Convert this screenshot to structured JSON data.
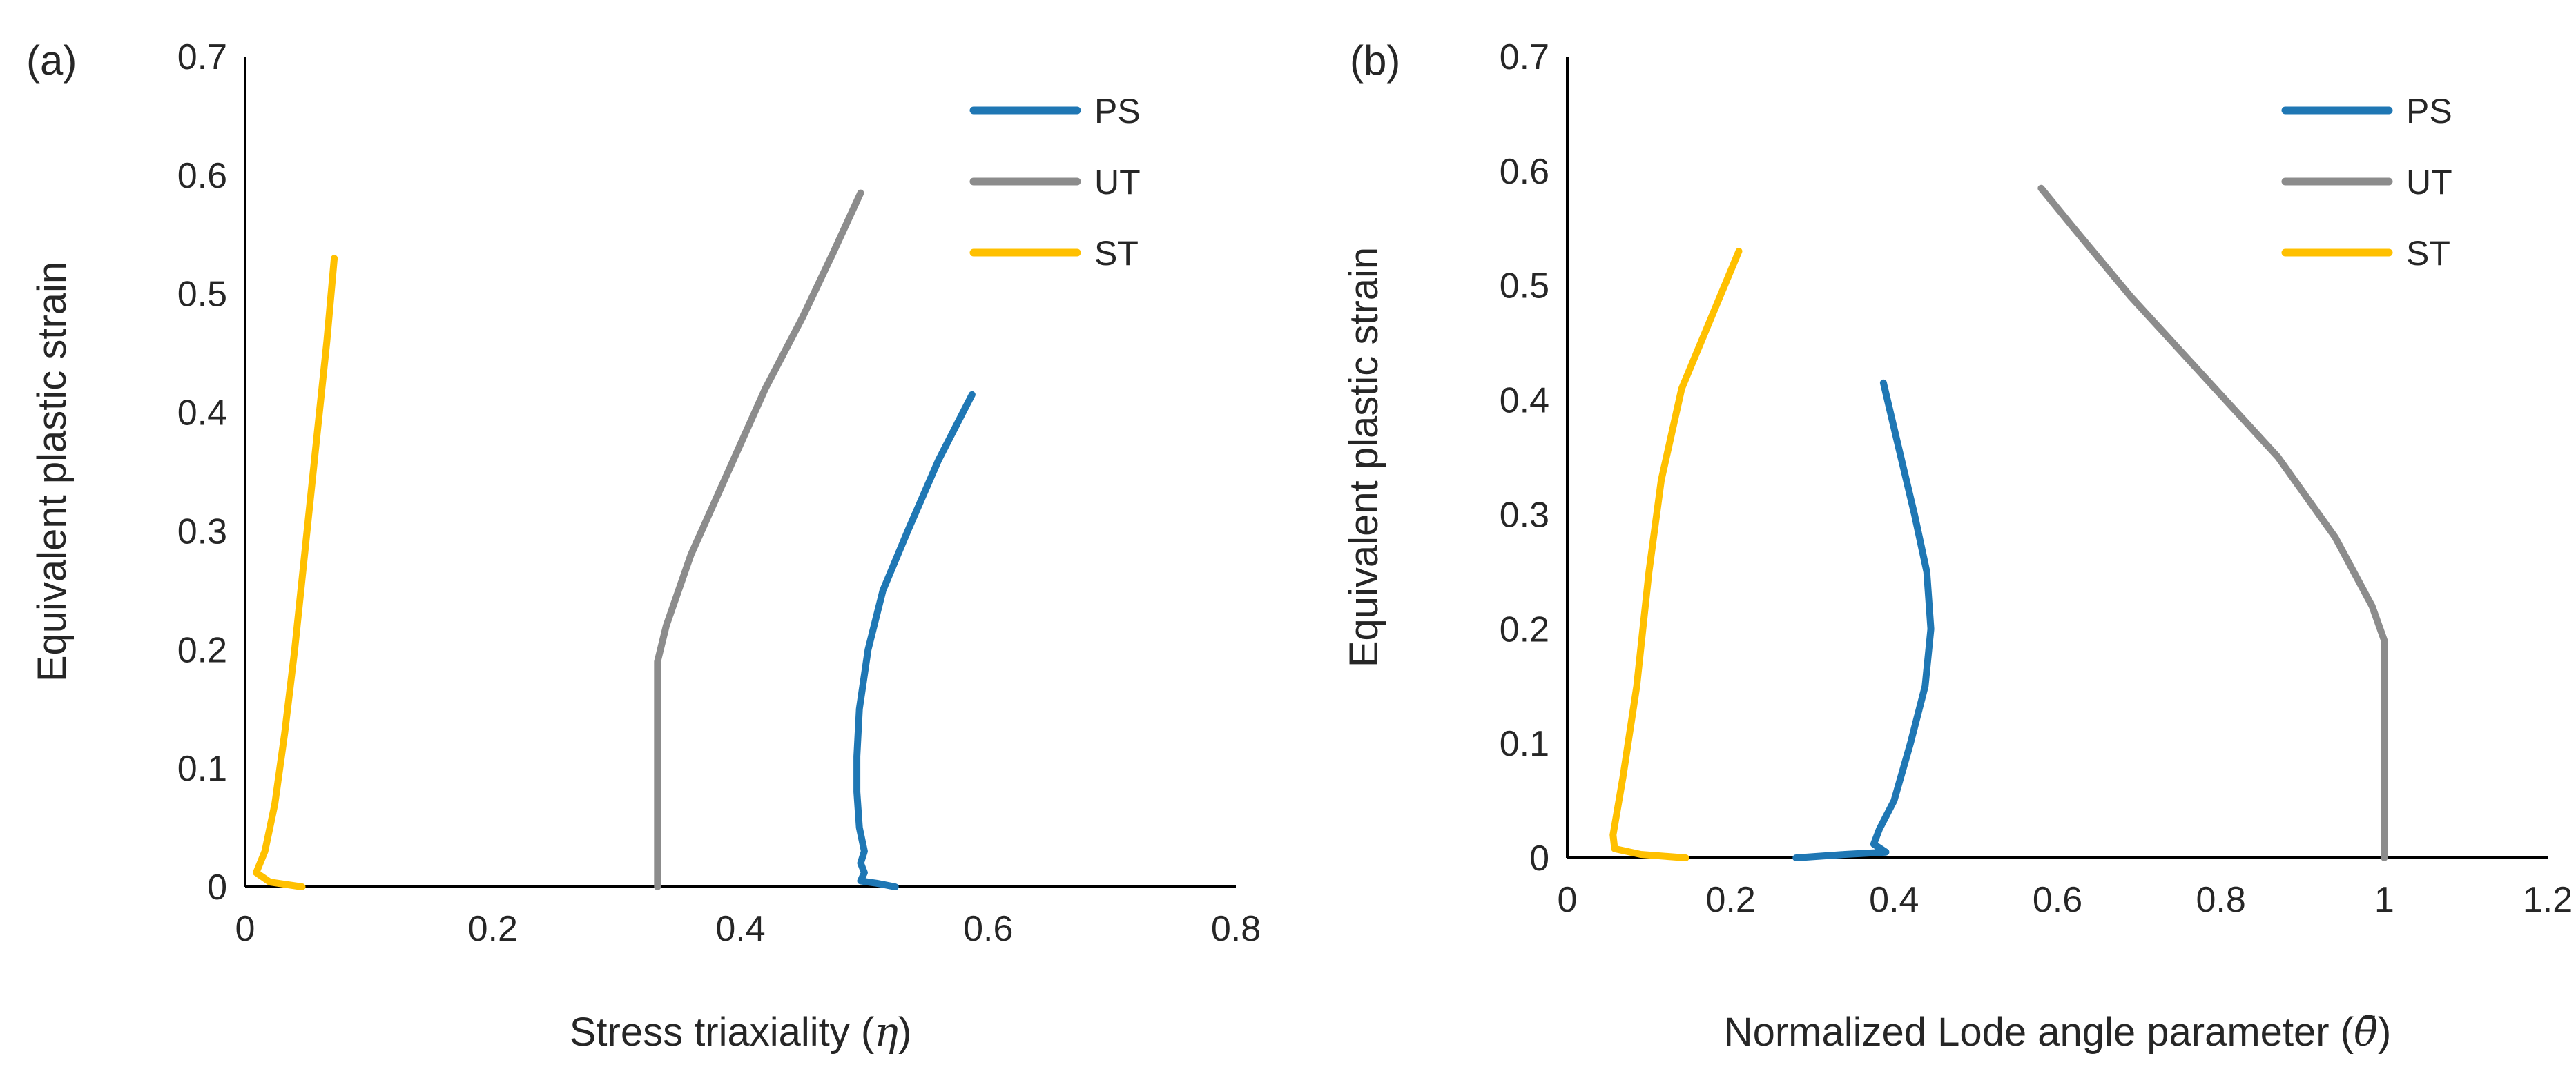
{
  "colors": {
    "PS": "#1f77b4",
    "UT": "#8c8c8c",
    "ST": "#ffc000"
  },
  "chart_data": [
    {
      "type": "line",
      "panel_label": "(a)",
      "xlabel_text": "Stress triaxiality (",
      "xlabel_symbol": "η",
      "xlabel_close": ")",
      "ylabel": "Equivalent plastic strain",
      "xlim": [
        0,
        0.8
      ],
      "ylim": [
        0,
        0.7
      ],
      "xticks": [
        "0",
        "0.2",
        "0.4",
        "0.6",
        "0.8"
      ],
      "yticks": [
        "0",
        "0.1",
        "0.2",
        "0.3",
        "0.4",
        "0.5",
        "0.6",
        "0.7"
      ],
      "grid": false,
      "legend_position": "top-right",
      "series": [
        {
          "name": "PS",
          "points": [
            [
              0.525,
              0.0
            ],
            [
              0.51,
              0.003
            ],
            [
              0.497,
              0.005
            ],
            [
              0.5,
              0.012
            ],
            [
              0.497,
              0.02
            ],
            [
              0.5,
              0.03
            ],
            [
              0.496,
              0.05
            ],
            [
              0.494,
              0.08
            ],
            [
              0.494,
              0.11
            ],
            [
              0.496,
              0.15
            ],
            [
              0.503,
              0.2
            ],
            [
              0.515,
              0.25
            ],
            [
              0.535,
              0.3
            ],
            [
              0.56,
              0.36
            ],
            [
              0.587,
              0.415
            ]
          ]
        },
        {
          "name": "UT",
          "points": [
            [
              0.333,
              0.0
            ],
            [
              0.333,
              0.19
            ],
            [
              0.34,
              0.22
            ],
            [
              0.36,
              0.28
            ],
            [
              0.39,
              0.35
            ],
            [
              0.42,
              0.42
            ],
            [
              0.45,
              0.48
            ],
            [
              0.475,
              0.535
            ],
            [
              0.497,
              0.585
            ]
          ]
        },
        {
          "name": "ST",
          "points": [
            [
              0.046,
              0.0
            ],
            [
              0.02,
              0.004
            ],
            [
              0.009,
              0.012
            ],
            [
              0.016,
              0.03
            ],
            [
              0.024,
              0.07
            ],
            [
              0.032,
              0.13
            ],
            [
              0.04,
              0.2
            ],
            [
              0.049,
              0.29
            ],
            [
              0.058,
              0.38
            ],
            [
              0.066,
              0.46
            ],
            [
              0.072,
              0.53
            ]
          ]
        }
      ]
    },
    {
      "type": "line",
      "panel_label": "(b)",
      "xlabel_text": "Normalized Lode angle parameter (",
      "xlabel_symbol": "θ̄",
      "xlabel_close": ")",
      "ylabel": "Equivalent plastic strain",
      "xlim": [
        0,
        1.2
      ],
      "ylim": [
        0,
        0.7
      ],
      "xticks": [
        "0",
        "0.2",
        "0.4",
        "0.6",
        "0.8",
        "1",
        "1.2"
      ],
      "yticks": [
        "0",
        "0.1",
        "0.2",
        "0.3",
        "0.4",
        "0.5",
        "0.6",
        "0.7"
      ],
      "grid": false,
      "legend_position": "top-right",
      "series": [
        {
          "name": "PS",
          "points": [
            [
              0.28,
              0.0
            ],
            [
              0.34,
              0.003
            ],
            [
              0.39,
              0.005
            ],
            [
              0.375,
              0.012
            ],
            [
              0.382,
              0.025
            ],
            [
              0.4,
              0.05
            ],
            [
              0.42,
              0.1
            ],
            [
              0.438,
              0.15
            ],
            [
              0.445,
              0.2
            ],
            [
              0.44,
              0.25
            ],
            [
              0.425,
              0.3
            ],
            [
              0.405,
              0.36
            ],
            [
              0.387,
              0.415
            ]
          ]
        },
        {
          "name": "UT",
          "points": [
            [
              1.0,
              0.0
            ],
            [
              1.0,
              0.19
            ],
            [
              0.985,
              0.22
            ],
            [
              0.94,
              0.28
            ],
            [
              0.87,
              0.35
            ],
            [
              0.78,
              0.42
            ],
            [
              0.69,
              0.49
            ],
            [
              0.62,
              0.55
            ],
            [
              0.58,
              0.585
            ]
          ]
        },
        {
          "name": "ST",
          "points": [
            [
              0.145,
              0.0
            ],
            [
              0.09,
              0.003
            ],
            [
              0.058,
              0.008
            ],
            [
              0.056,
              0.02
            ],
            [
              0.068,
              0.07
            ],
            [
              0.085,
              0.15
            ],
            [
              0.1,
              0.25
            ],
            [
              0.115,
              0.33
            ],
            [
              0.14,
              0.41
            ],
            [
              0.175,
              0.47
            ],
            [
              0.21,
              0.53
            ]
          ]
        }
      ]
    }
  ]
}
